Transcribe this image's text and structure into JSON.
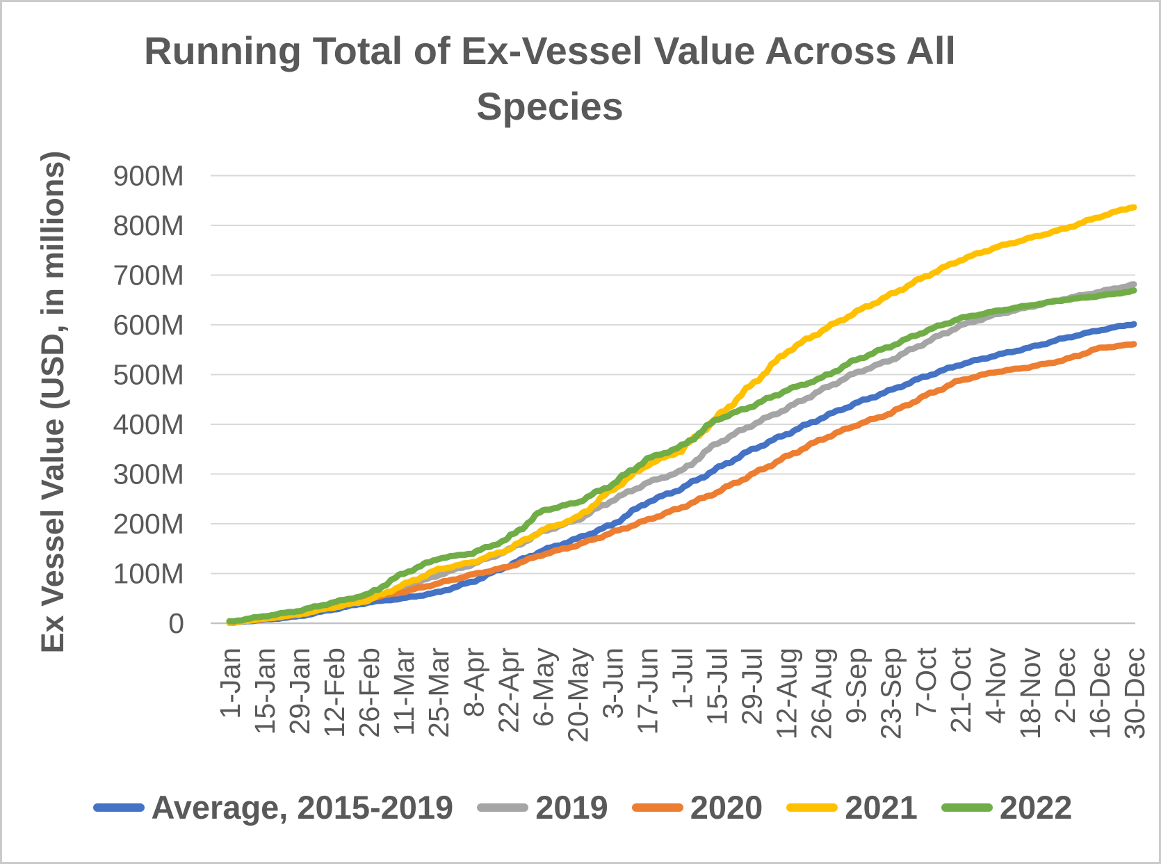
{
  "chart_data": {
    "type": "line",
    "title": "Running Total of Ex-Vessel Value Across All Species",
    "title_line1": "Running Total of Ex-Vessel Value Across All",
    "title_line2": "Species",
    "ylabel": "Ex Vessel Value (USD, in millions)",
    "xlabel": "",
    "ylim": [
      0,
      900
    ],
    "y_tick_labels": [
      "0",
      "100M",
      "200M",
      "300M",
      "400M",
      "500M",
      "600M",
      "700M",
      "800M",
      "900M"
    ],
    "grid": "horizontal",
    "legend_position": "bottom",
    "style": {
      "text_color": "#595959",
      "gridline_color": "#D9D9D9",
      "axis_line_color": "#C3C3C3",
      "background": "#FFFFFF"
    },
    "categories": [
      "1-Jan",
      "15-Jan",
      "29-Jan",
      "12-Feb",
      "26-Feb",
      "11-Mar",
      "25-Mar",
      "8-Apr",
      "22-Apr",
      "6-May",
      "20-May",
      "3-Jun",
      "17-Jun",
      "1-Jul",
      "15-Jul",
      "29-Jul",
      "12-Aug",
      "26-Aug",
      "9-Sep",
      "23-Sep",
      "7-Oct",
      "21-Oct",
      "4-Nov",
      "18-Nov",
      "2-Dec",
      "16-Dec",
      "30-Dec"
    ],
    "value_unit": "USD millions",
    "series": [
      {
        "name": "Average, 2015-2019",
        "color": "#4472C4",
        "values": [
          1,
          7,
          14,
          28,
          42,
          50,
          62,
          84,
          115,
          146,
          170,
          198,
          243,
          271,
          310,
          348,
          380,
          412,
          442,
          468,
          496,
          520,
          538,
          554,
          573,
          589,
          602
        ]
      },
      {
        "name": "2019",
        "color": "#A5A5A5",
        "values": [
          1,
          9,
          18,
          37,
          49,
          70,
          97,
          119,
          146,
          184,
          208,
          247,
          282,
          306,
          361,
          398,
          431,
          468,
          503,
          529,
          564,
          598,
          620,
          636,
          652,
          666,
          681
        ]
      },
      {
        "name": "2020",
        "color": "#ED7D31",
        "values": [
          1,
          9,
          18,
          39,
          50,
          63,
          80,
          98,
          113,
          138,
          157,
          182,
          207,
          233,
          263,
          298,
          334,
          369,
          398,
          422,
          457,
          488,
          505,
          515,
          529,
          553,
          561
        ]
      },
      {
        "name": "2021",
        "color": "#FFC000",
        "values": [
          1,
          9,
          18,
          32,
          46,
          77,
          108,
          123,
          148,
          187,
          212,
          268,
          318,
          348,
          412,
          478,
          545,
          587,
          625,
          660,
          697,
          730,
          755,
          774,
          793,
          817,
          838
        ]
      },
      {
        "name": "2022",
        "color": "#70AD47",
        "values": [
          3,
          14,
          25,
          42,
          58,
          100,
          130,
          141,
          169,
          226,
          243,
          279,
          330,
          355,
          409,
          436,
          468,
          492,
          529,
          557,
          587,
          613,
          627,
          639,
          650,
          658,
          668
        ]
      }
    ]
  }
}
